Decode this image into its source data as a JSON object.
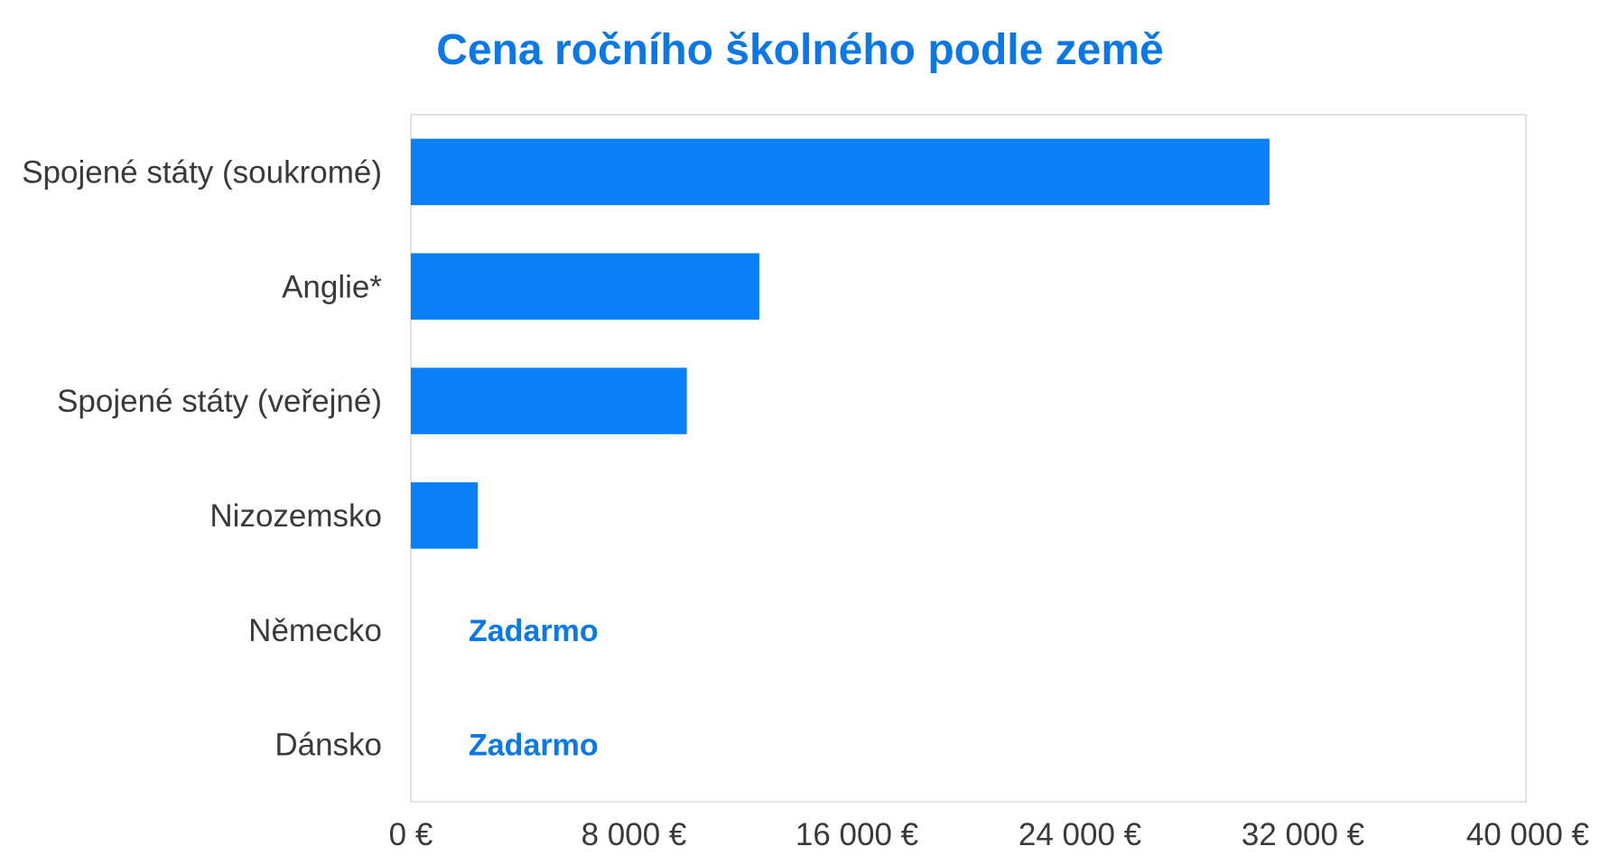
{
  "chart_data": {
    "type": "bar",
    "orientation": "horizontal",
    "title": "Cena ročního školného podle země",
    "xlabel": "",
    "ylabel": "",
    "categories": [
      "Spojené státy (soukromé)",
      "Anglie*",
      "Spojené státy (veřejné)",
      "Nizozemsko",
      "Německo",
      "Dánsko"
    ],
    "values": [
      30800,
      12500,
      9900,
      2400,
      0,
      0
    ],
    "data_labels": [
      "",
      "",
      "",
      "",
      "Zadarmo",
      "Zadarmo"
    ],
    "xlim": [
      0,
      40000
    ],
    "ticks": [
      0,
      8000,
      16000,
      24000,
      32000,
      40000
    ],
    "tick_labels": [
      "0 €",
      "8 000 €",
      "16 000 €",
      "24 000 €",
      "32 000 €",
      "40 000 €"
    ],
    "grid": false,
    "legend": "none",
    "colors": {
      "bar": "#0a80f7",
      "title": "#0a78e6",
      "data_label": "#0a78e6",
      "axis_text": "#3a3a3a",
      "plot_border": "#d9d9d9"
    }
  }
}
